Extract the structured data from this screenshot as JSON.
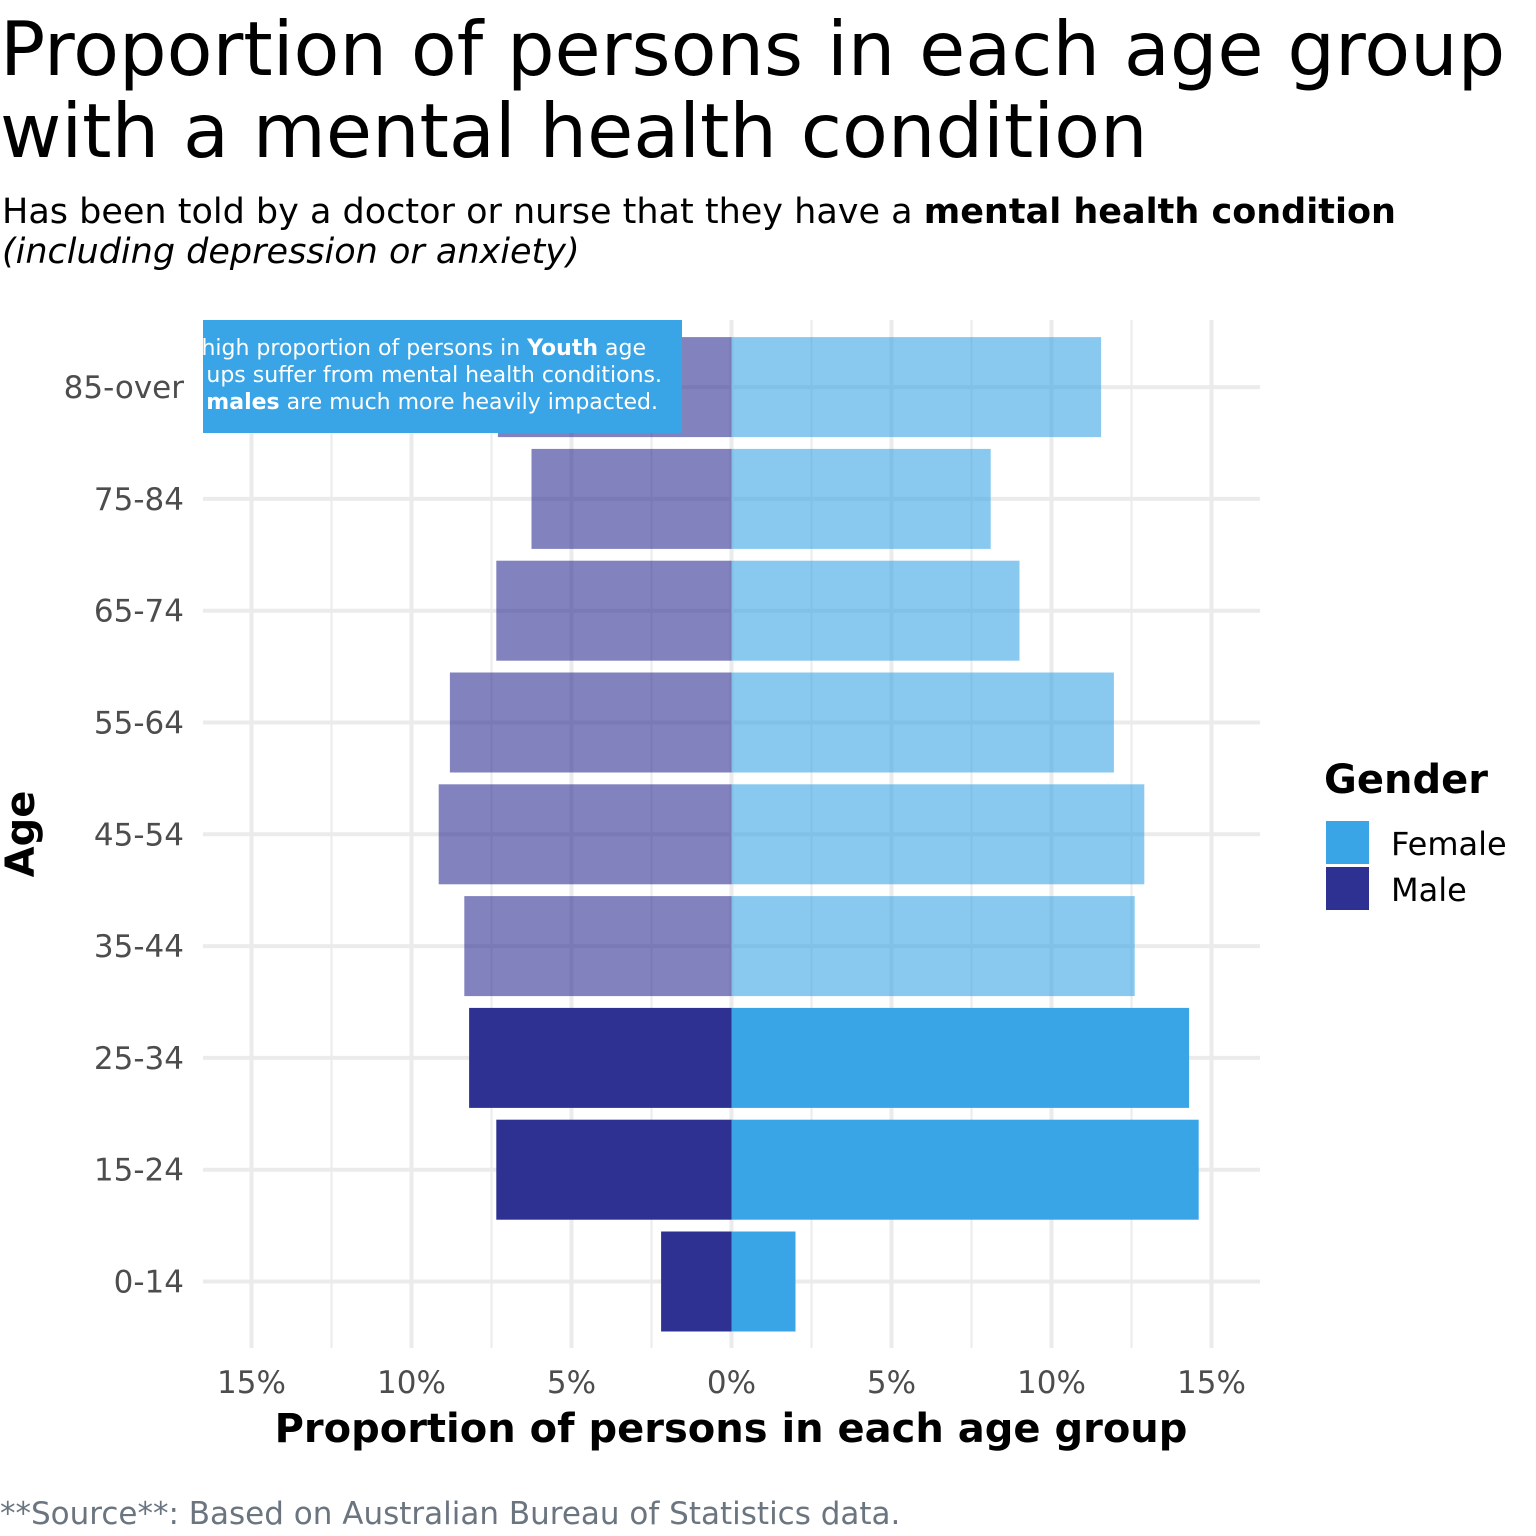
{
  "title": {
    "line1": "Proportion of persons in each age group",
    "line2": "with a mental health condition"
  },
  "subtitle": {
    "part1": "Has been told by a doctor or nurse that they have a ",
    "bold": "mental health condition",
    "line2": "(including depression or anxiety)"
  },
  "caption": "**Source**: Based on Australian Bureau of Statistics data.",
  "annotation": {
    "line1_pre": "high proportion of persons in ",
    "line1_bold": "Youth",
    "line1_post": " age",
    "line2": "ups suffer from mental health conditions.",
    "line3_bold": "males",
    "line3_post": " are much more heavily impacted.",
    "fill": "#3aa5e6"
  },
  "legend": {
    "title": "Gender",
    "items": [
      {
        "label": "Female",
        "color": "#3aa5e6"
      },
      {
        "label": "Male",
        "color": "#2e3192"
      }
    ]
  },
  "chart_data": {
    "type": "bar",
    "orientation": "horizontal-diverging",
    "categories": [
      "0-14",
      "15-24",
      "25-34",
      "35-44",
      "45-54",
      "55-64",
      "65-74",
      "75-84",
      "85-over"
    ],
    "series": [
      {
        "name": "Female",
        "color": "#3aa5e6",
        "values": [
          2.0,
          14.6,
          14.3,
          12.6,
          12.9,
          11.95,
          9.0,
          8.1,
          11.55
        ]
      },
      {
        "name": "Male",
        "color": "#2e3192",
        "values": [
          2.2,
          7.35,
          8.2,
          8.35,
          9.15,
          8.8,
          7.35,
          6.25,
          7.3
        ]
      }
    ],
    "highlighted_categories": [
      "0-14",
      "15-24",
      "25-34"
    ],
    "faded_opacity": 0.6,
    "xlim": [
      -15.0,
      15.0
    ],
    "xticks": [
      -15,
      -10,
      -5,
      0,
      5,
      10,
      15
    ],
    "xtick_labels": [
      "15%",
      "10%",
      "5%",
      "0%",
      "5%",
      "10%",
      "15%"
    ],
    "xlabel": "Proportion of persons in each age group",
    "ylabel": "Age",
    "grid": true,
    "legend_position": "right"
  }
}
